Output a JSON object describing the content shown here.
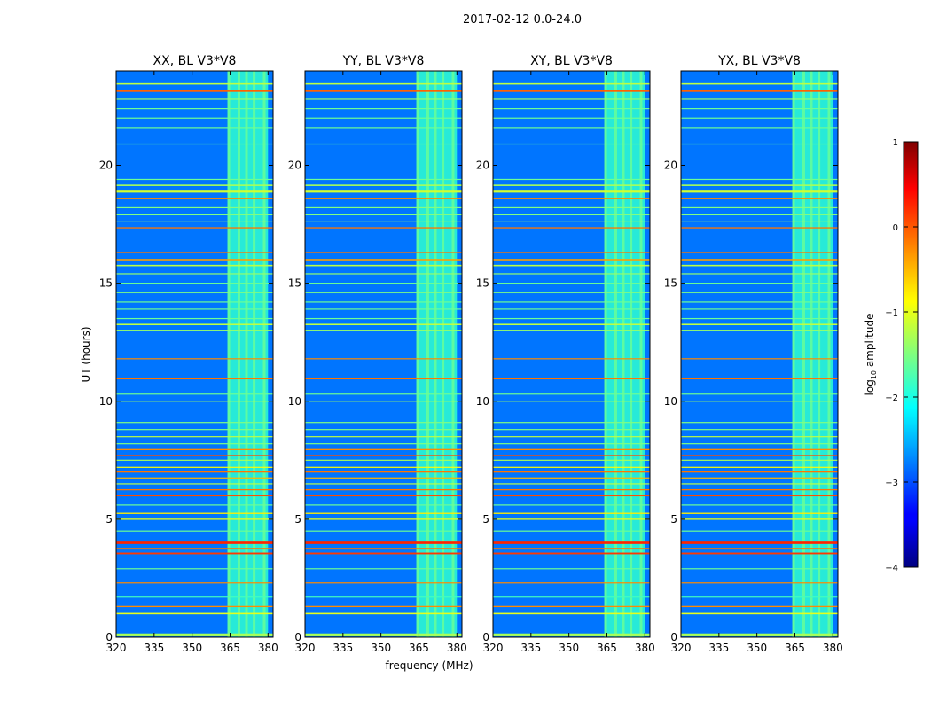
{
  "figure_title": "2017-02-12 0.0-24.0",
  "chart_data": {
    "type": "heatmap",
    "suptitle": "2017-02-12 0.0-24.0",
    "xlabel": "frequency (MHz)",
    "ylabel": "UT (hours)",
    "xlim": [
      320,
      382
    ],
    "ylim": [
      0,
      24
    ],
    "xticks": [
      320,
      335,
      350,
      365,
      380
    ],
    "yticks": [
      0,
      5,
      10,
      15,
      20
    ],
    "panels": [
      {
        "title": "XX, BL V3*V8"
      },
      {
        "title": "YY, BL V3*V8"
      },
      {
        "title": "XY, BL V3*V8"
      },
      {
        "title": "YX, BL V3*V8"
      }
    ],
    "background_level": -2.8,
    "band": {
      "freq_range": [
        364,
        380
      ],
      "level": -1.9
    },
    "band_stripes_mhz": [
      364.5,
      368.5,
      371.5,
      374.5,
      378.5
    ],
    "rfi_lines": [
      {
        "ut": 0.1,
        "width": 0.12,
        "level": -1.3
      },
      {
        "ut": 1.0,
        "width": 0.06,
        "level": -1.0
      },
      {
        "ut": 1.3,
        "width": 0.05,
        "level": -0.3
      },
      {
        "ut": 1.7,
        "width": 0.03,
        "level": -1.8
      },
      {
        "ut": 2.3,
        "width": 0.03,
        "level": -0.3
      },
      {
        "ut": 2.9,
        "width": 0.03,
        "level": -1.6
      },
      {
        "ut": 3.55,
        "width": 0.07,
        "level": 0.1
      },
      {
        "ut": 3.75,
        "width": 0.07,
        "level": -0.2
      },
      {
        "ut": 4.0,
        "width": 0.1,
        "level": 0.2
      },
      {
        "ut": 4.5,
        "width": 0.03,
        "level": -1.6
      },
      {
        "ut": 5.0,
        "width": 0.05,
        "level": -1.0
      },
      {
        "ut": 5.25,
        "width": 0.05,
        "level": -0.8
      },
      {
        "ut": 5.6,
        "width": 0.03,
        "level": -1.6
      },
      {
        "ut": 6.0,
        "width": 0.06,
        "level": 0.0
      },
      {
        "ut": 6.25,
        "width": 0.05,
        "level": -0.2
      },
      {
        "ut": 6.5,
        "width": 0.04,
        "level": -1.2
      },
      {
        "ut": 6.75,
        "width": 0.04,
        "level": -0.5
      },
      {
        "ut": 7.0,
        "width": 0.05,
        "level": -0.2
      },
      {
        "ut": 7.2,
        "width": 0.04,
        "level": -0.9
      },
      {
        "ut": 7.5,
        "width": 0.04,
        "level": -1.3
      },
      {
        "ut": 7.7,
        "width": 0.05,
        "level": 0.0
      },
      {
        "ut": 7.95,
        "width": 0.05,
        "level": -0.3
      },
      {
        "ut": 8.2,
        "width": 0.04,
        "level": -1.5
      },
      {
        "ut": 8.5,
        "width": 0.04,
        "level": -1.2
      },
      {
        "ut": 8.8,
        "width": 0.03,
        "level": -1.5
      },
      {
        "ut": 9.1,
        "width": 0.03,
        "level": -1.5
      },
      {
        "ut": 10.0,
        "width": 0.04,
        "level": -1.3
      },
      {
        "ut": 10.3,
        "width": 0.03,
        "level": -1.6
      },
      {
        "ut": 10.95,
        "width": 0.03,
        "level": -0.2
      },
      {
        "ut": 11.8,
        "width": 0.03,
        "level": -0.3
      },
      {
        "ut": 13.0,
        "width": 0.06,
        "level": -1.4
      },
      {
        "ut": 13.25,
        "width": 0.06,
        "level": -1.2
      },
      {
        "ut": 13.5,
        "width": 0.03,
        "level": -1.6
      },
      {
        "ut": 13.9,
        "width": 0.03,
        "level": -1.6
      },
      {
        "ut": 14.2,
        "width": 0.03,
        "level": -1.6
      },
      {
        "ut": 14.6,
        "width": 0.04,
        "level": -1.5
      },
      {
        "ut": 15.0,
        "width": 0.03,
        "level": -1.6
      },
      {
        "ut": 15.4,
        "width": 0.04,
        "level": -1.4
      },
      {
        "ut": 15.75,
        "width": 0.06,
        "level": -1.2
      },
      {
        "ut": 16.0,
        "width": 0.06,
        "level": -0.4
      },
      {
        "ut": 16.3,
        "width": 0.05,
        "level": -0.2
      },
      {
        "ut": 17.35,
        "width": 0.05,
        "level": -0.2
      },
      {
        "ut": 17.6,
        "width": 0.04,
        "level": -1.3
      },
      {
        "ut": 17.9,
        "width": 0.03,
        "level": -1.5
      },
      {
        "ut": 18.2,
        "width": 0.03,
        "level": -1.5
      },
      {
        "ut": 18.6,
        "width": 0.05,
        "level": -0.3
      },
      {
        "ut": 18.9,
        "width": 0.12,
        "level": -1.1
      },
      {
        "ut": 19.15,
        "width": 0.06,
        "level": -1.3
      },
      {
        "ut": 19.4,
        "width": 0.03,
        "level": -1.6
      },
      {
        "ut": 20.9,
        "width": 0.03,
        "level": -1.6
      },
      {
        "ut": 21.6,
        "width": 0.03,
        "level": -1.6
      },
      {
        "ut": 22.0,
        "width": 0.03,
        "level": -1.6
      },
      {
        "ut": 22.4,
        "width": 0.03,
        "level": -1.6
      },
      {
        "ut": 22.8,
        "width": 0.03,
        "level": -1.4
      },
      {
        "ut": 23.15,
        "width": 0.08,
        "level": -0.1
      },
      {
        "ut": 23.45,
        "width": 0.06,
        "level": -1.2
      }
    ],
    "colorbar": {
      "label": "log₁₀ amplitude",
      "label_prefix": "log",
      "label_subscript": "10",
      "label_suffix": " amplitude",
      "range": [
        -4,
        1
      ],
      "ticks": [
        "1",
        "0",
        "−1",
        "−2",
        "−3",
        "−4"
      ],
      "colormap": "jet"
    }
  }
}
